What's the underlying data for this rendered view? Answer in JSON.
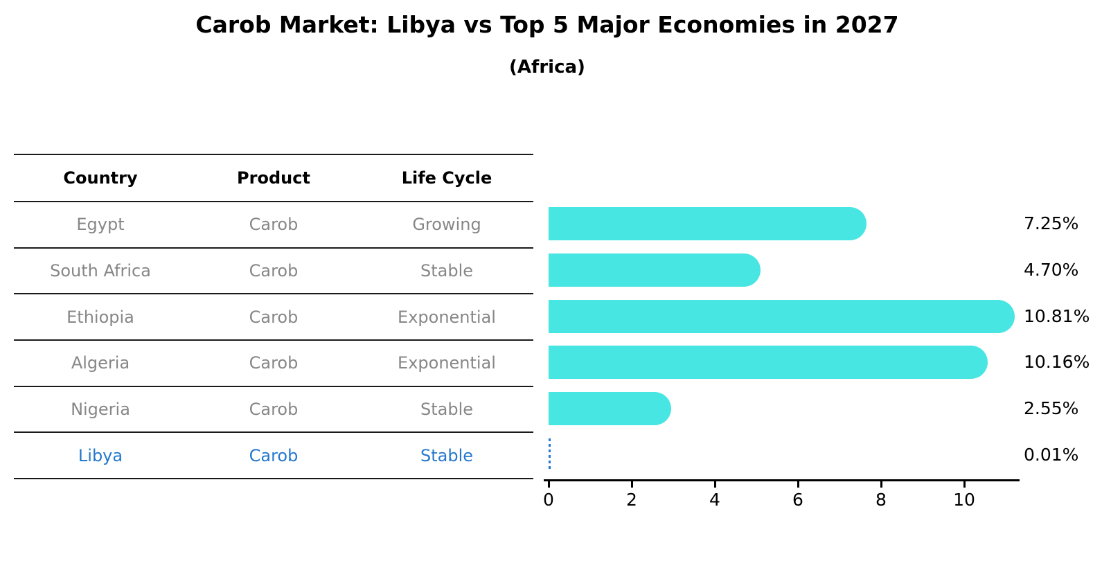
{
  "title": "Carob Market: Libya vs Top 5 Major Economies in 2027",
  "subtitle": "(Africa)",
  "table": {
    "headers": {
      "country": "Country",
      "product": "Product",
      "life_cycle": "Life Cycle"
    },
    "rows": [
      {
        "country": "Egypt",
        "product": "Carob",
        "life_cycle": "Growing"
      },
      {
        "country": "South Africa",
        "product": "Carob",
        "life_cycle": "Stable"
      },
      {
        "country": "Ethiopia",
        "product": "Carob",
        "life_cycle": "Exponential"
      },
      {
        "country": "Algeria",
        "product": "Carob",
        "life_cycle": "Exponential"
      },
      {
        "country": "Nigeria",
        "product": "Carob",
        "life_cycle": "Stable"
      },
      {
        "country": "Libya",
        "product": "Carob",
        "life_cycle": "Stable"
      }
    ],
    "highlight_row": "Libya"
  },
  "chart_data": {
    "type": "bar",
    "orientation": "horizontal",
    "title": "Carob Market: Libya vs Top 5 Major Economies in 2027",
    "subtitle": "(Africa)",
    "categories": [
      "Egypt",
      "South Africa",
      "Ethiopia",
      "Algeria",
      "Nigeria",
      "Libya"
    ],
    "values": [
      7.25,
      4.7,
      10.81,
      10.16,
      2.55,
      0.01
    ],
    "value_labels": [
      "7.25%",
      "4.70%",
      "10.81%",
      "10.16%",
      "2.55%",
      "0.01%"
    ],
    "xlabel": "",
    "ylabel": "",
    "xticks": [
      "0",
      "2",
      "4",
      "6",
      "8",
      "10"
    ],
    "xlim": [
      0,
      11.35
    ],
    "grid": false,
    "legend": false,
    "bar_color": "#47E6E3",
    "highlight_color": "#2478CD",
    "highlight_index": 5,
    "axis_color": "#000000",
    "text_muted_color": "#878787"
  }
}
